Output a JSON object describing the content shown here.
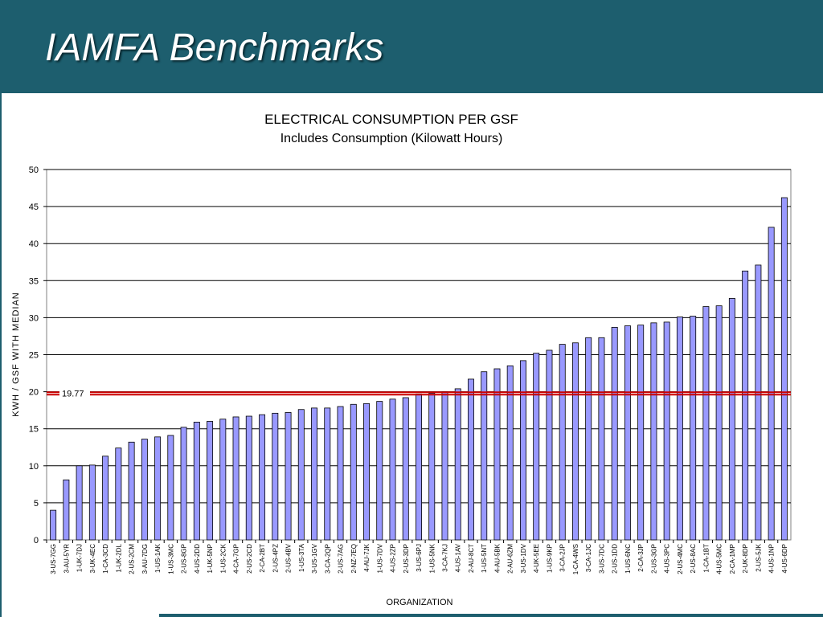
{
  "slide": {
    "title": "IAMFA Benchmarks"
  },
  "colors": {
    "header": "#1d5e6e",
    "bar_fill": "#9999ff",
    "bar_stroke": "#000000",
    "median_line": "#cc0000"
  },
  "chart_data": {
    "type": "bar",
    "title": "ELECTRICAL CONSUMPTION PER  GSF",
    "subtitle": "Includes Consumption (Kilowatt Hours)",
    "xlabel": "ORGANIZATION",
    "ylabel": "KWH / GSF WITH MEDIAN",
    "ylim": [
      0,
      50
    ],
    "yticks": [
      0,
      5,
      10,
      15,
      20,
      25,
      30,
      35,
      40,
      45,
      50
    ],
    "grid": true,
    "legend": "none",
    "median": {
      "value": 19.77,
      "label": "19.77"
    },
    "categories": [
      "3-US-7GG",
      "3-AU-5YR",
      "1-UK-7DJ",
      "3-UK-4EC",
      "1-CA-3CD",
      "1-UK-2DL",
      "2-US-2CM",
      "3-AU-7DG",
      "1-US-1AK",
      "1-US-3MC",
      "2-US-8GP",
      "4-US-2DD",
      "1-UK-5NP",
      "1-US-2CK",
      "4-CA-7GP",
      "2-US-2CD",
      "2-CA-2BT",
      "2-US-4PZ",
      "2-US-4BV",
      "1-US-3TA",
      "3-US-1GV",
      "3-CA-2QP",
      "2-US-7AG",
      "2-NZ-7EQ",
      "4-AU-7JK",
      "1-US-7DV",
      "4-US-2ZP",
      "2-US-3DP",
      "3-US-6PJ",
      "1-US-5NK",
      "3-CA-7KJ",
      "4-US-1AV",
      "2-AU-8CT",
      "1-US-5NT",
      "4-AU-5BK",
      "2-AU-6ZM",
      "3-US-1DV",
      "4-UK-5EE",
      "1-US-9KP",
      "3-CA-2JP",
      "1-CA-4WS",
      "3-CA-1JC",
      "3-US-7DC",
      "2-US-1DD",
      "1-US-6NC",
      "2-CA-3JP",
      "2-US-3GP",
      "4-US-3PC",
      "2-US-4MC",
      "2-US-8AC",
      "1-CA-1BT",
      "4-US-5MC",
      "2-CA-1MP",
      "2-UK-8DP",
      "2-US-5JK",
      "4-US-1NP",
      "4-US-6DP"
    ],
    "values": [
      4.0,
      8.1,
      10.0,
      10.1,
      11.3,
      12.4,
      13.2,
      13.6,
      13.9,
      14.1,
      15.2,
      15.9,
      16.0,
      16.3,
      16.6,
      16.7,
      16.9,
      17.1,
      17.2,
      17.6,
      17.8,
      17.8,
      18.0,
      18.3,
      18.4,
      18.7,
      19.0,
      19.2,
      19.7,
      19.8,
      20.0,
      20.4,
      21.7,
      22.7,
      23.1,
      23.5,
      24.2,
      25.2,
      25.6,
      26.4,
      26.6,
      27.3,
      27.3,
      28.7,
      28.9,
      29.0,
      29.3,
      29.4,
      30.1,
      30.2,
      31.5,
      31.6,
      32.6,
      36.3,
      37.1,
      42.2,
      46.2
    ]
  }
}
